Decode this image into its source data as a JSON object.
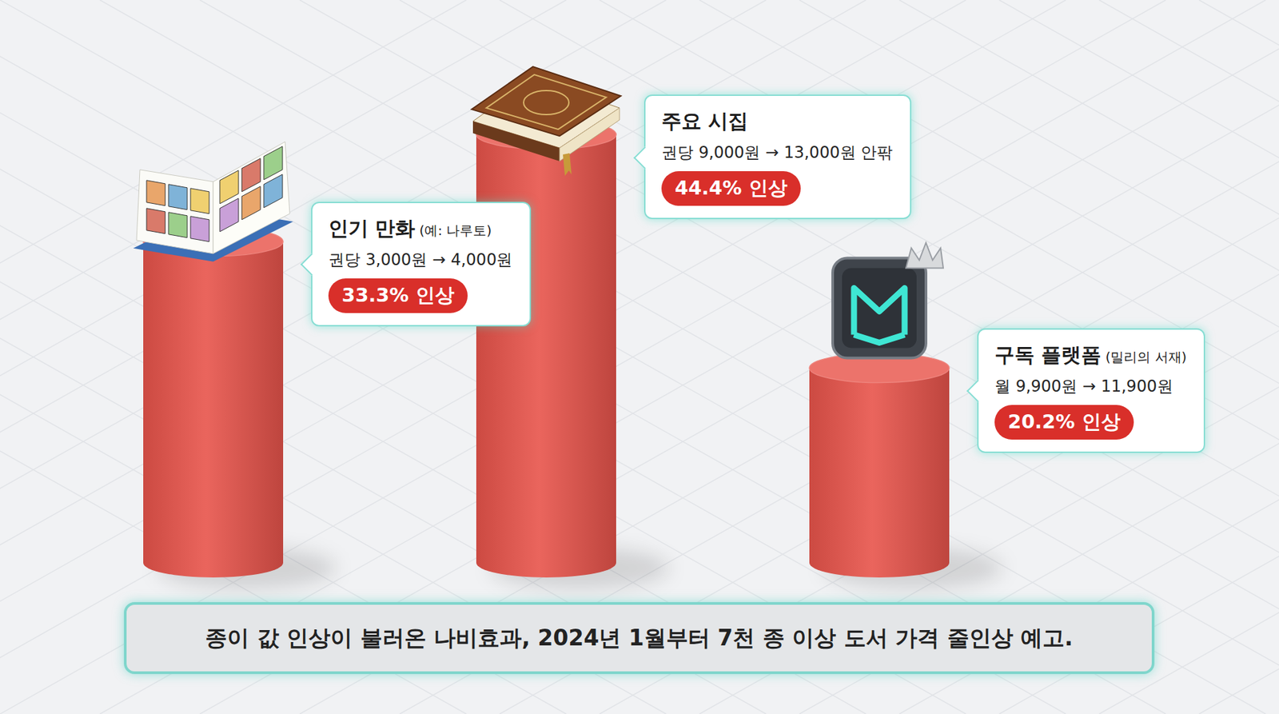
{
  "chart_data": {
    "type": "bar",
    "title": "종이 값 인상이 불러온 나비효과, 2024년 1월부터 7천 종 이상 도서 가격 줄인상 예고.",
    "categories": [
      "인기 만화",
      "주요 시집",
      "구독 플랫폼"
    ],
    "annotations": [
      {
        "category_note": "(예: 나루토)",
        "price": "권당 3,000원 → 4,000원"
      },
      {
        "price": "권당 9,000원 → 13,000원 안팎"
      },
      {
        "category_note": "(밀리의 서재)",
        "price": "월 9,900원 → 11,900원"
      }
    ],
    "values": [
      33.3,
      44.4,
      20.2
    ],
    "value_labels": [
      "33.3% 인상",
      "44.4% 인상",
      "20.2% 인상"
    ],
    "data_labels": true,
    "color": "#e8544b",
    "ylim": [
      0,
      50
    ],
    "tick_labels": false,
    "grid": false
  }
}
